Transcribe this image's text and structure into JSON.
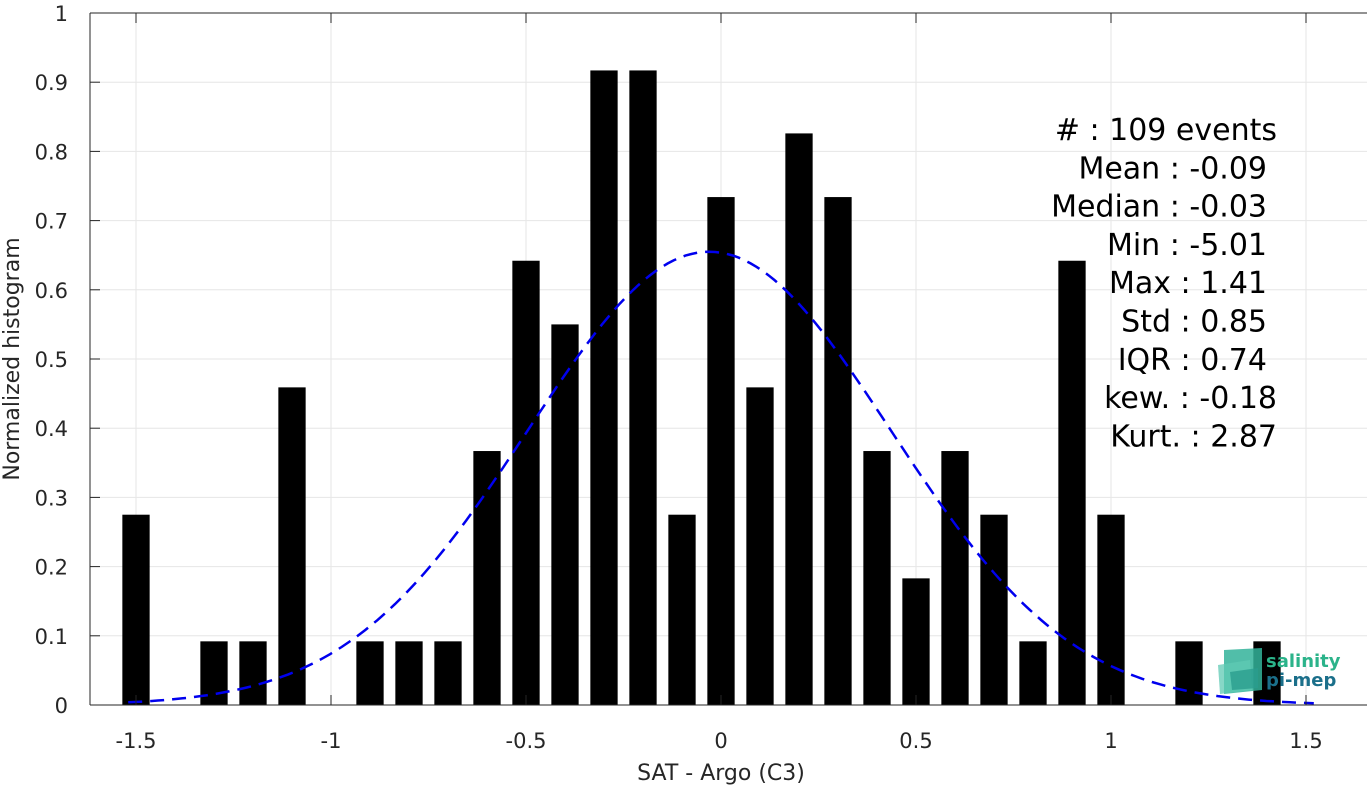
{
  "chart_data": {
    "type": "bar",
    "title": "",
    "xlabel": "SAT - Argo (C3)",
    "ylabel": "Normalized histogram",
    "xlim": [
      -1.6,
      1.6
    ],
    "ylim": [
      0,
      1
    ],
    "grid": true,
    "x_ticks": [
      -1.5,
      -1,
      -0.5,
      0,
      0.5,
      1,
      1.5
    ],
    "x_tick_labels": [
      "-1.5",
      "-1",
      "-0.5",
      "0",
      "0.5",
      "1",
      "1.5"
    ],
    "y_ticks": [
      0,
      0.1,
      0.2,
      0.3,
      0.4,
      0.5,
      0.6,
      0.7,
      0.8,
      0.9,
      1
    ],
    "y_tick_labels": [
      "0",
      "0.1",
      "0.2",
      "0.3",
      "0.4",
      "0.5",
      "0.6",
      "0.7",
      "0.8",
      "0.9",
      "1"
    ],
    "bar_width": 0.07,
    "x": [
      -1.5,
      -1.3,
      -1.2,
      -1.1,
      -0.9,
      -0.8,
      -0.7,
      -0.6,
      -0.5,
      -0.4,
      -0.3,
      -0.2,
      -0.1,
      0.0,
      0.1,
      0.2,
      0.3,
      0.4,
      0.5,
      0.6,
      0.7,
      0.8,
      0.9,
      1.0,
      1.2,
      1.4
    ],
    "values": [
      0.275,
      0.092,
      0.092,
      0.459,
      0.092,
      0.092,
      0.092,
      0.367,
      0.642,
      0.55,
      0.917,
      0.917,
      0.275,
      0.734,
      0.459,
      0.826,
      0.734,
      0.367,
      0.183,
      0.367,
      0.275,
      0.092,
      0.642,
      0.275,
      0.092,
      0.092
    ],
    "fit_curve": {
      "type": "gaussian",
      "peak": 0.655,
      "mean": -0.03,
      "sigma": 0.465,
      "x_range": [
        -1.52,
        1.52
      ],
      "color": "#0000ee",
      "style": "dashed"
    },
    "bar_color": "#000000",
    "annotations": [
      "#  : 109 events",
      "Mean : -0.09",
      "Median : -0.03",
      "Min : -5.01",
      "Max : 1.41",
      "Std : 0.85",
      "IQR : 0.74",
      "kew. : -0.18",
      "Kurt. : 2.87"
    ]
  },
  "logo": {
    "line1": "salinity",
    "line2": "pi-mep",
    "color1": "#2bb38a",
    "color2": "#1b6f8a"
  }
}
